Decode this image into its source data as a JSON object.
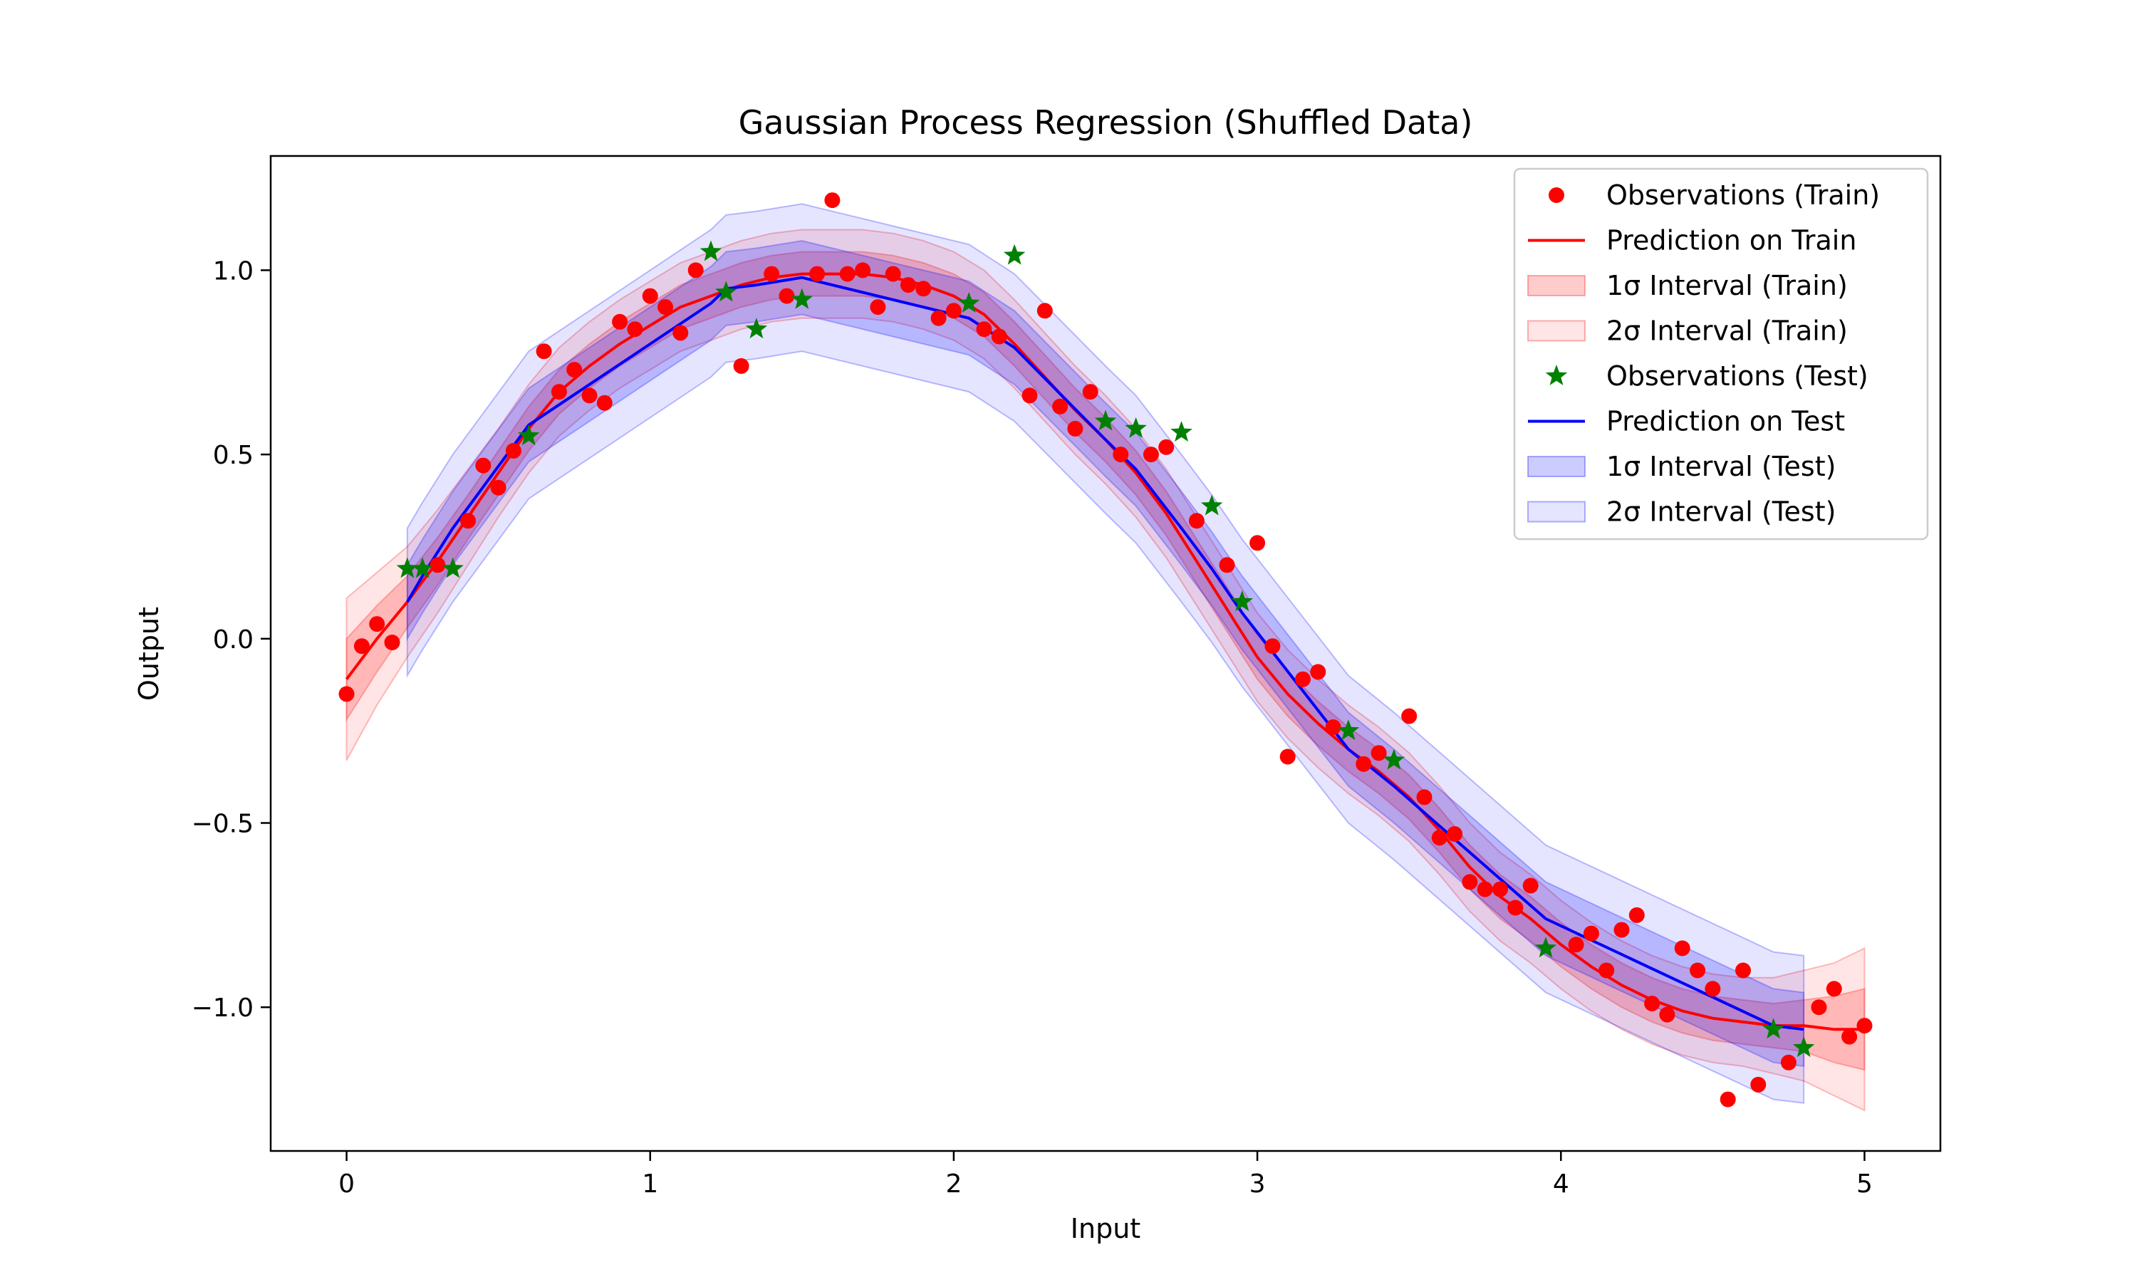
{
  "chart_data": {
    "type": "line",
    "title": "Gaussian Process Regression (Shuffled Data)",
    "xlabel": "Input",
    "ylabel": "Output",
    "xlim": [
      -0.25,
      5.25
    ],
    "ylim": [
      -1.39,
      1.31
    ],
    "xticks": [
      0,
      1,
      2,
      3,
      4,
      5
    ],
    "xtick_labels": [
      "0",
      "1",
      "2",
      "3",
      "4",
      "5"
    ],
    "yticks": [
      -1.0,
      -0.5,
      0.0,
      0.5,
      1.0
    ],
    "ytick_labels": [
      "−1.0",
      "−0.5",
      "0.0",
      "0.5",
      "1.0"
    ],
    "grid": false,
    "legend_position": "top-right",
    "colors": {
      "train": "#ff0000",
      "test_line": "#0000ff",
      "test_obs": "#008000"
    },
    "series": [
      {
        "name": "Observations (Train)",
        "kind": "scatter",
        "x": [
          0.0,
          0.05,
          0.1,
          0.15,
          0.3,
          0.4,
          0.45,
          0.5,
          0.55,
          0.65,
          0.7,
          0.75,
          0.8,
          0.85,
          0.9,
          0.95,
          1.0,
          1.05,
          1.1,
          1.15,
          1.3,
          1.4,
          1.45,
          1.55,
          1.6,
          1.65,
          1.7,
          1.75,
          1.8,
          1.85,
          1.9,
          1.95,
          2.0,
          2.1,
          2.15,
          2.25,
          2.3,
          2.35,
          2.4,
          2.45,
          2.55,
          2.65,
          2.7,
          2.8,
          2.9,
          3.0,
          3.05,
          3.1,
          3.15,
          3.2,
          3.25,
          3.35,
          3.4,
          3.5,
          3.55,
          3.6,
          3.65,
          3.7,
          3.75,
          3.8,
          3.85,
          3.9,
          4.05,
          4.1,
          4.15,
          4.2,
          4.25,
          4.3,
          4.35,
          4.4,
          4.45,
          4.5,
          4.55,
          4.6,
          4.65,
          4.75,
          4.85,
          4.9,
          4.95,
          5.0
        ],
        "y": [
          -0.15,
          -0.02,
          0.04,
          -0.01,
          0.2,
          0.32,
          0.47,
          0.41,
          0.51,
          0.78,
          0.67,
          0.73,
          0.66,
          0.64,
          0.86,
          0.84,
          0.93,
          0.9,
          0.83,
          1.0,
          0.74,
          0.99,
          0.93,
          0.99,
          1.19,
          0.99,
          1.0,
          0.9,
          0.99,
          0.96,
          0.95,
          0.87,
          0.89,
          0.84,
          0.82,
          0.66,
          0.89,
          0.63,
          0.57,
          0.67,
          0.5,
          0.5,
          0.52,
          0.32,
          0.2,
          0.26,
          -0.02,
          -0.32,
          -0.11,
          -0.09,
          -0.24,
          -0.34,
          -0.31,
          -0.21,
          -0.43,
          -0.54,
          -0.53,
          -0.66,
          -0.68,
          -0.68,
          -0.73,
          -0.67,
          -0.83,
          -0.8,
          -0.9,
          -0.79,
          -0.75,
          -0.99,
          -1.02,
          -0.84,
          -0.9,
          -0.95,
          -1.25,
          -0.9,
          -1.21,
          -1.15,
          -1.0,
          -0.95,
          -1.08,
          -1.05
        ]
      },
      {
        "name": "Prediction on Train",
        "kind": "line",
        "x": [
          0.0,
          0.1,
          0.2,
          0.3,
          0.4,
          0.5,
          0.6,
          0.7,
          0.8,
          0.9,
          1.0,
          1.1,
          1.2,
          1.3,
          1.4,
          1.5,
          1.6,
          1.7,
          1.8,
          1.9,
          2.0,
          2.1,
          2.2,
          2.3,
          2.4,
          2.5,
          2.6,
          2.7,
          2.8,
          2.9,
          3.0,
          3.1,
          3.2,
          3.3,
          3.4,
          3.5,
          3.6,
          3.7,
          3.8,
          3.9,
          4.0,
          4.1,
          4.2,
          4.3,
          4.4,
          4.5,
          4.6,
          4.7,
          4.8,
          4.9,
          5.0
        ],
        "y": [
          -0.11,
          0.0,
          0.1,
          0.21,
          0.33,
          0.45,
          0.57,
          0.67,
          0.74,
          0.8,
          0.85,
          0.9,
          0.93,
          0.96,
          0.98,
          0.99,
          0.99,
          0.99,
          0.98,
          0.96,
          0.93,
          0.88,
          0.8,
          0.71,
          0.62,
          0.54,
          0.45,
          0.34,
          0.21,
          0.08,
          -0.05,
          -0.15,
          -0.23,
          -0.3,
          -0.36,
          -0.43,
          -0.52,
          -0.62,
          -0.7,
          -0.76,
          -0.83,
          -0.89,
          -0.94,
          -0.98,
          -1.01,
          -1.03,
          -1.04,
          -1.05,
          -1.05,
          -1.06,
          -1.06
        ]
      },
      {
        "name": "1σ Interval (Train)",
        "kind": "band",
        "of": "Prediction on Train",
        "halfwidth": [
          0.11,
          0.09,
          0.07,
          0.065,
          0.06,
          0.06,
          0.06,
          0.06,
          0.06,
          0.06,
          0.06,
          0.06,
          0.06,
          0.06,
          0.06,
          0.06,
          0.06,
          0.06,
          0.06,
          0.06,
          0.06,
          0.06,
          0.06,
          0.06,
          0.06,
          0.06,
          0.06,
          0.06,
          0.06,
          0.06,
          0.06,
          0.06,
          0.06,
          0.06,
          0.06,
          0.06,
          0.06,
          0.06,
          0.06,
          0.06,
          0.06,
          0.06,
          0.06,
          0.06,
          0.06,
          0.06,
          0.06,
          0.06,
          0.07,
          0.09,
          0.11
        ]
      },
      {
        "name": "2σ Interval (Train)",
        "kind": "band",
        "of": "Prediction on Train",
        "halfwidth": [
          0.22,
          0.18,
          0.15,
          0.14,
          0.13,
          0.12,
          0.12,
          0.12,
          0.12,
          0.12,
          0.12,
          0.12,
          0.12,
          0.12,
          0.12,
          0.12,
          0.12,
          0.12,
          0.12,
          0.12,
          0.12,
          0.12,
          0.12,
          0.12,
          0.12,
          0.12,
          0.12,
          0.12,
          0.12,
          0.12,
          0.12,
          0.12,
          0.12,
          0.12,
          0.12,
          0.12,
          0.12,
          0.12,
          0.12,
          0.12,
          0.12,
          0.12,
          0.12,
          0.12,
          0.12,
          0.12,
          0.12,
          0.13,
          0.15,
          0.18,
          0.22
        ]
      },
      {
        "name": "Observations (Test)",
        "kind": "scatter",
        "x": [
          0.2,
          0.25,
          0.35,
          0.6,
          1.2,
          1.25,
          1.35,
          1.5,
          2.05,
          2.2,
          2.5,
          2.6,
          2.75,
          2.85,
          2.95,
          3.3,
          3.45,
          3.95,
          4.7,
          4.8
        ],
        "y": [
          0.19,
          0.19,
          0.19,
          0.55,
          1.05,
          0.94,
          0.84,
          0.92,
          0.91,
          1.04,
          0.59,
          0.57,
          0.56,
          0.36,
          0.1,
          -0.25,
          -0.33,
          -0.84,
          -1.06,
          -1.11
        ]
      },
      {
        "name": "Prediction on Test",
        "kind": "line",
        "x": [
          0.2,
          0.25,
          0.35,
          0.6,
          1.2,
          1.25,
          1.35,
          1.5,
          2.05,
          2.2,
          2.5,
          2.6,
          2.75,
          2.85,
          2.95,
          3.3,
          3.45,
          3.95,
          4.7,
          4.8
        ],
        "y": [
          0.1,
          0.17,
          0.3,
          0.58,
          0.91,
          0.95,
          0.96,
          0.98,
          0.87,
          0.79,
          0.54,
          0.46,
          0.3,
          0.19,
          0.07,
          -0.3,
          -0.4,
          -0.76,
          -1.05,
          -1.06
        ]
      },
      {
        "name": "1σ Interval (Test)",
        "kind": "band",
        "of": "Prediction on Test",
        "halfwidth": [
          0.1,
          0.1,
          0.1,
          0.1,
          0.1,
          0.1,
          0.1,
          0.1,
          0.1,
          0.1,
          0.1,
          0.1,
          0.1,
          0.1,
          0.1,
          0.1,
          0.1,
          0.1,
          0.1,
          0.1
        ]
      },
      {
        "name": "2σ Interval (Test)",
        "kind": "band",
        "of": "Prediction on Test",
        "halfwidth": [
          0.2,
          0.2,
          0.2,
          0.2,
          0.2,
          0.2,
          0.2,
          0.2,
          0.2,
          0.2,
          0.2,
          0.2,
          0.2,
          0.2,
          0.2,
          0.2,
          0.2,
          0.2,
          0.2,
          0.2
        ]
      }
    ],
    "legend": [
      "Observations (Train)",
      "Prediction on Train",
      "1σ Interval (Train)",
      "2σ Interval (Train)",
      "Observations (Test)",
      "Prediction on Test",
      "1σ Interval (Test)",
      "2σ Interval (Test)"
    ]
  }
}
